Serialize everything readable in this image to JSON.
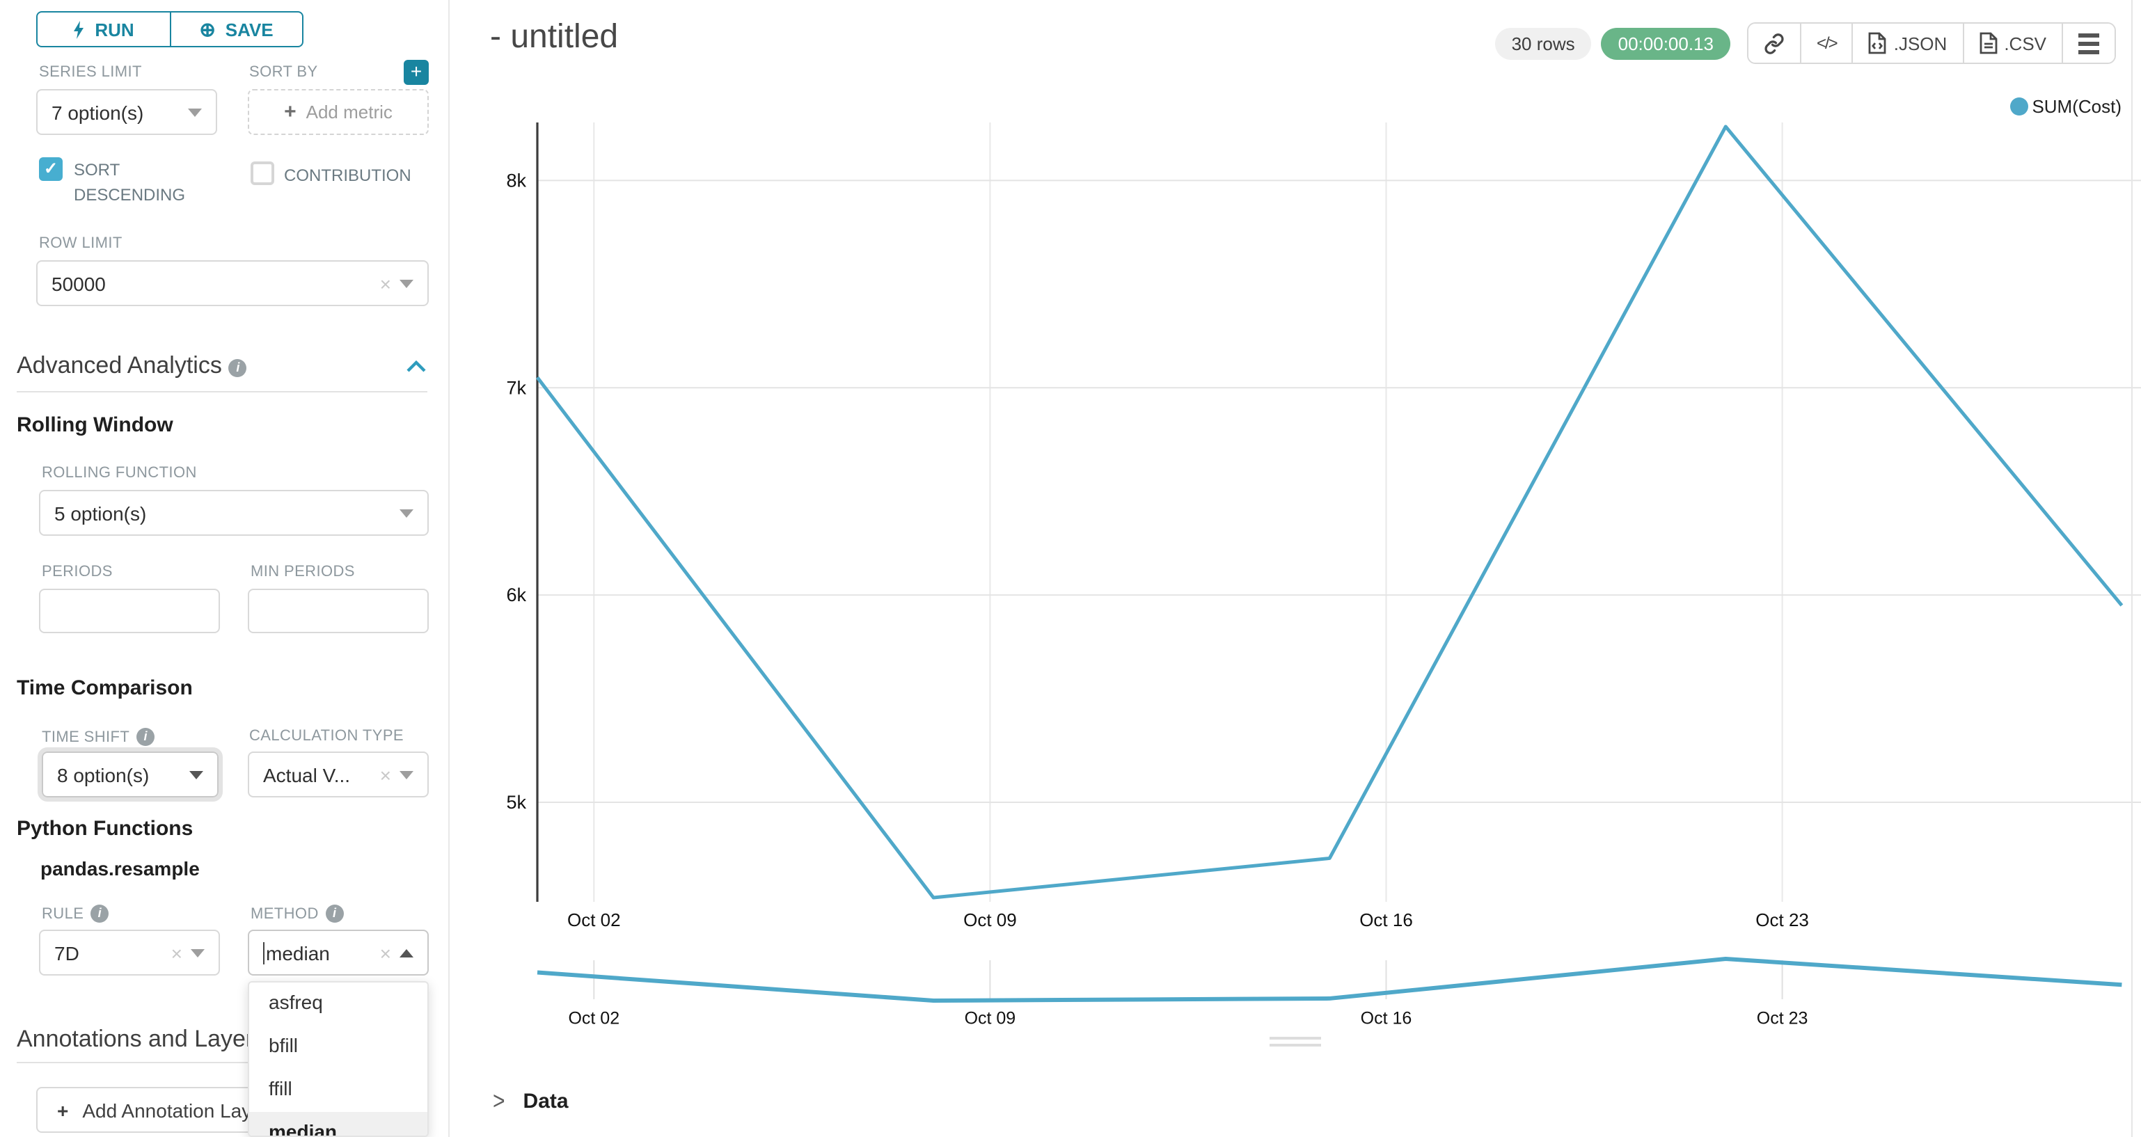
{
  "colors": {
    "accent": "#1985a0",
    "series": "#4FA8C9",
    "timer_bg": "#69b588"
  },
  "toolbar": {
    "run_label": "RUN",
    "save_label": "SAVE"
  },
  "controls": {
    "series_limit": {
      "label": "SERIES LIMIT",
      "value": "7 option(s)"
    },
    "sort_by": {
      "label": "SORT BY",
      "placeholder_plus": "+",
      "placeholder": "Add metric"
    },
    "sort_descending": {
      "label": "SORT DESCENDING",
      "checked": true,
      "check_glyph": "✓"
    },
    "contribution": {
      "label": "CONTRIBUTION",
      "checked": false
    },
    "row_limit": {
      "label": "ROW LIMIT",
      "value": "50000"
    }
  },
  "advanced_analytics": {
    "title": "Advanced Analytics",
    "rolling_window": {
      "title": "Rolling Window",
      "rolling_function": {
        "label": "ROLLING FUNCTION",
        "value": "5 option(s)"
      },
      "periods_label": "PERIODS",
      "min_periods_label": "MIN PERIODS"
    },
    "time_comparison": {
      "title": "Time Comparison",
      "time_shift": {
        "label": "TIME SHIFT",
        "value": "8 option(s)"
      },
      "calculation_type": {
        "label": "CALCULATION TYPE",
        "value": "Actual V..."
      }
    },
    "python_functions": {
      "title": "Python Functions",
      "subtitle": "pandas.resample",
      "rule": {
        "label": "RULE",
        "value": "7D"
      },
      "method": {
        "label": "METHOD",
        "value": "median",
        "options": [
          "asfreq",
          "bfill",
          "ffill",
          "median"
        ],
        "selected": "median"
      }
    }
  },
  "annotations": {
    "title": "Annotations and Layers",
    "add_button_plus": "+",
    "add_button": "Add Annotation Layer"
  },
  "header": {
    "title": "- untitled",
    "rows_badge": "30 rows",
    "timer": "00:00:00.13",
    "export_json_label": ".JSON",
    "export_csv_label": ".CSV"
  },
  "data_panel": {
    "chevron": ">",
    "title": "Data"
  },
  "chart_data": {
    "type": "line",
    "title": "- untitled",
    "legend_position": "top-right",
    "grid": true,
    "series": [
      {
        "name": "SUM(Cost)",
        "color": "#4FA8C9",
        "x_dates": [
          "Oct 01",
          "Oct 08",
          "Oct 15",
          "Oct 22",
          "Oct 29"
        ],
        "x_days": [
          0,
          7,
          14,
          21,
          28
        ],
        "values": [
          7050,
          4540,
          4730,
          8260,
          5950
        ]
      }
    ],
    "x_ticks": [
      {
        "label": "Oct 02",
        "day": 1
      },
      {
        "label": "Oct 09",
        "day": 8
      },
      {
        "label": "Oct 16",
        "day": 15
      },
      {
        "label": "Oct 23",
        "day": 22
      }
    ],
    "y_ticks": [
      {
        "label": "8k",
        "value": 8000
      },
      {
        "label": "7k",
        "value": 7000
      },
      {
        "label": "6k",
        "value": 6000
      },
      {
        "label": "5k",
        "value": 5000
      }
    ],
    "ylim": [
      4520,
      8280
    ],
    "xlabel": "",
    "ylabel": "",
    "has_preview_strip": true
  }
}
